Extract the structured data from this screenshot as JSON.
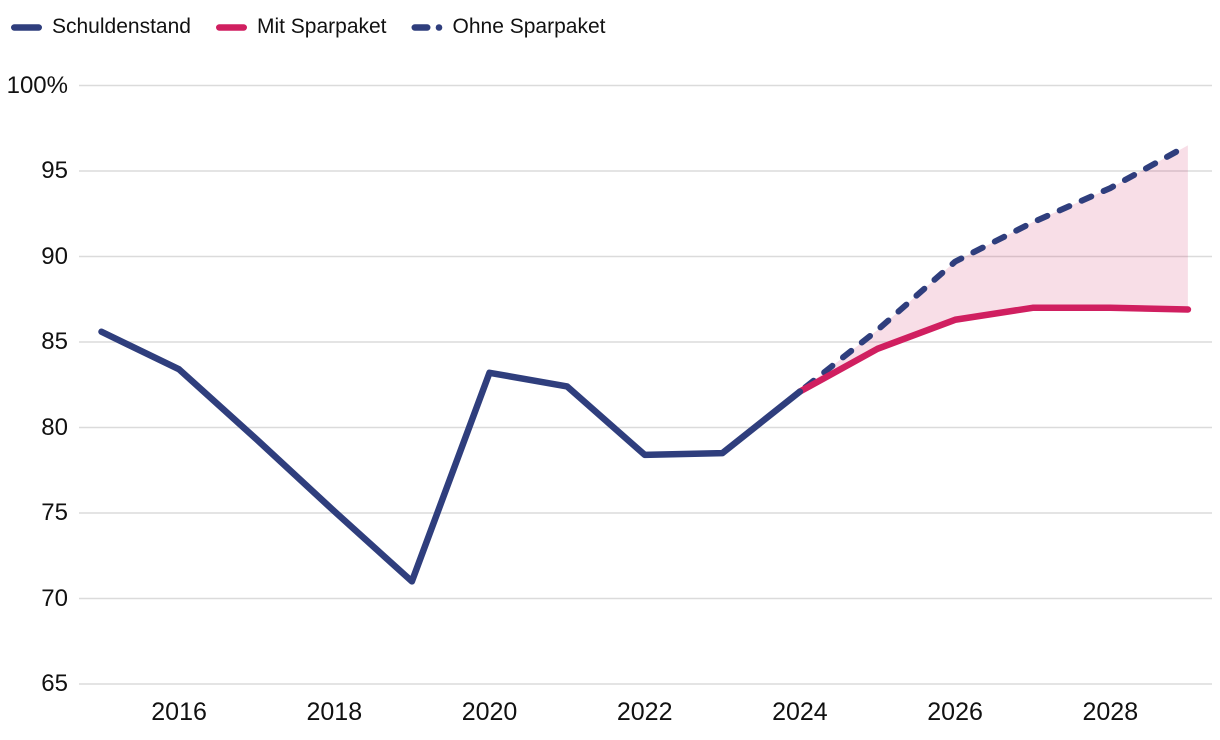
{
  "legend": {
    "items": [
      {
        "label": "Schuldenstand",
        "style": "solid",
        "color": "#2F3E7D"
      },
      {
        "label": "Mit Sparpaket",
        "style": "solid",
        "color": "#D01F60"
      },
      {
        "label": "Ohne Sparpaket",
        "style": "dashed",
        "color": "#2F3E7D"
      }
    ]
  },
  "chart_data": {
    "type": "line",
    "title": "",
    "xlabel": "",
    "ylabel": "",
    "legend_position": "top-left",
    "y_axis": {
      "min": 65,
      "max": 100,
      "tick_values": [
        100,
        95,
        90,
        85,
        80,
        75,
        70,
        65
      ],
      "tick_labels": [
        "100%",
        "95",
        "90",
        "85",
        "80",
        "75",
        "70",
        "65"
      ],
      "grid": true
    },
    "x_axis": {
      "range": [
        2015,
        2029
      ],
      "tick_values": [
        2016,
        2018,
        2020,
        2022,
        2024,
        2026,
        2028
      ],
      "tick_labels": [
        "2016",
        "2018",
        "2020",
        "2022",
        "2024",
        "2026",
        "2028"
      ]
    },
    "series": [
      {
        "name": "Schuldenstand",
        "color": "#2F3E7D",
        "dash": false,
        "x": [
          2015,
          2016,
          2017,
          2018,
          2019,
          2020,
          2021,
          2022,
          2023,
          2024
        ],
        "y": [
          85.6,
          83.4,
          79.3,
          75.1,
          71.0,
          83.2,
          82.4,
          78.4,
          78.5,
          82.1
        ]
      },
      {
        "name": "Mit Sparpaket",
        "color": "#D01F60",
        "dash": false,
        "x": [
          2024,
          2025,
          2026,
          2027,
          2028,
          2029
        ],
        "y": [
          82.1,
          84.6,
          86.3,
          87.0,
          87.0,
          86.9
        ]
      },
      {
        "name": "Ohne Sparpaket",
        "color": "#2F3E7D",
        "dash": true,
        "x": [
          2024,
          2025,
          2026,
          2027,
          2028,
          2029
        ],
        "y": [
          82.1,
          85.7,
          89.7,
          92.0,
          94.0,
          96.5
        ]
      }
    ],
    "shaded_band": {
      "upper": "Ohne Sparpaket",
      "lower": "Mit Sparpaket",
      "from": 2024,
      "to": 2029,
      "color": "#D01F60",
      "opacity": 0.15
    },
    "colors": {
      "grid": "#DBDBDB",
      "text": "#111111",
      "background": "#FFFFFF"
    }
  }
}
